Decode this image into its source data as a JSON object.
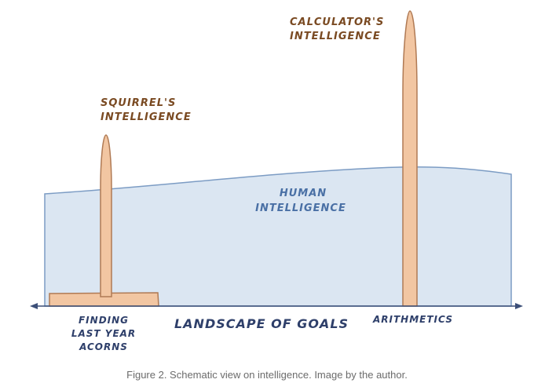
{
  "labels": {
    "calculator_line1": "CALCULATOR'S",
    "calculator_line2": "INTELLIGENCE",
    "squirrel_line1": "SQUIRREL'S",
    "squirrel_line2": "INTELLIGENCE",
    "human_line1": "HUMAN",
    "human_line2": "INTELLIGENCE",
    "axis_label": "LANDSCAPE OF GOALS",
    "finding_line1": "FINDING",
    "finding_line2": "LAST YEAR",
    "finding_line3": "ACORNS",
    "arithmetics": "ARITHMETICS"
  },
  "caption": "Figure 2. Schematic view on intelligence. Image by the author.",
  "colors": {
    "human_fill": "#dbe6f2",
    "human_stroke": "#7c9cc4",
    "human_text": "#4a70a5",
    "peak_fill": "#f2c6a2",
    "peak_stroke": "#b07a54",
    "brown_text": "#7a4a22",
    "axis_color": "#3c4f78",
    "axis_text": "#2e3f6a"
  }
}
